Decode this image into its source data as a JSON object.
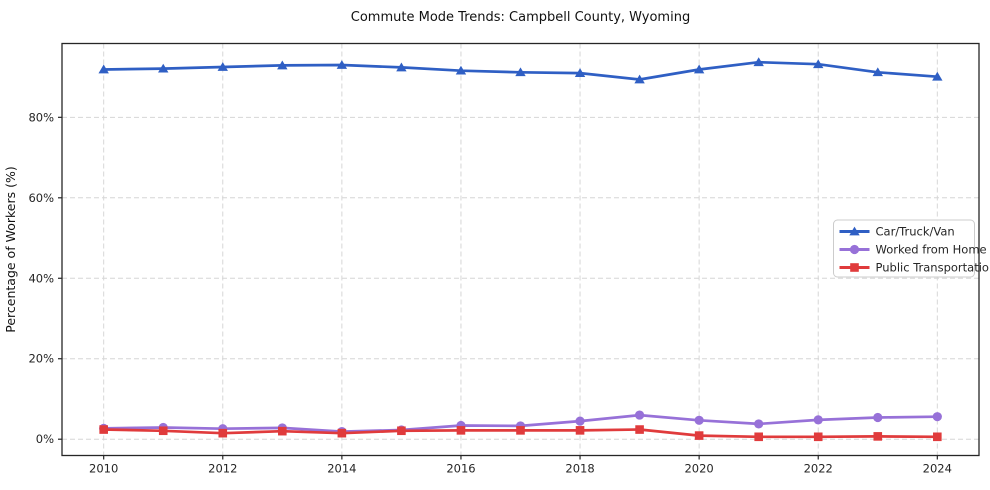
{
  "chart_data": {
    "type": "line",
    "title": "Commute Mode Trends: Campbell County, Wyoming",
    "xlabel": "",
    "ylabel": "Percentage of Workers (%)",
    "x": [
      2010,
      2011,
      2012,
      2013,
      2014,
      2015,
      2016,
      2017,
      2018,
      2019,
      2020,
      2021,
      2022,
      2023,
      2024
    ],
    "series": [
      {
        "name": "Car/Truck/Van",
        "color": "#2f5fc4",
        "marker": "triangle",
        "values": [
          91.9,
          92.1,
          92.5,
          92.9,
          93.0,
          92.4,
          91.6,
          91.2,
          91.0,
          89.4,
          91.9,
          93.7,
          93.2,
          91.2,
          90.1
        ]
      },
      {
        "name": "Worked from Home",
        "color": "#9771d8",
        "marker": "circle",
        "values": [
          2.7,
          2.9,
          2.6,
          2.8,
          1.9,
          2.3,
          3.4,
          3.3,
          4.5,
          6.0,
          4.7,
          3.8,
          4.8,
          5.4,
          5.6
        ]
      },
      {
        "name": "Public Transportation",
        "color": "#e03b3c",
        "marker": "square",
        "values": [
          2.4,
          2.1,
          1.5,
          2.0,
          1.5,
          2.1,
          2.2,
          2.2,
          2.2,
          2.4,
          0.9,
          0.6,
          0.6,
          0.7,
          0.6
        ]
      }
    ],
    "xlim": [
      2009.3,
      2024.7
    ],
    "ylim": [
      -4.05,
      98.35
    ],
    "xticks": [
      {
        "value": 2010,
        "label": "2010"
      },
      {
        "value": 2012,
        "label": "2012"
      },
      {
        "value": 2014,
        "label": "2014"
      },
      {
        "value": 2016,
        "label": "2016"
      },
      {
        "value": 2018,
        "label": "2018"
      },
      {
        "value": 2020,
        "label": "2020"
      },
      {
        "value": 2022,
        "label": "2022"
      },
      {
        "value": 2024,
        "label": "2024"
      }
    ],
    "yticks": [
      {
        "value": 0,
        "label": "0%"
      },
      {
        "value": 20,
        "label": "20%"
      },
      {
        "value": 40,
        "label": "40%"
      },
      {
        "value": 60,
        "label": "60%"
      },
      {
        "value": 80,
        "label": "80%"
      }
    ],
    "grid": true,
    "legend_position": "center-right",
    "colors": {
      "grid": "#d6d6d6",
      "spine": "#262626",
      "tick_label": "#262626",
      "legend_border": "#cccccc",
      "background": "#ffffff"
    }
  }
}
